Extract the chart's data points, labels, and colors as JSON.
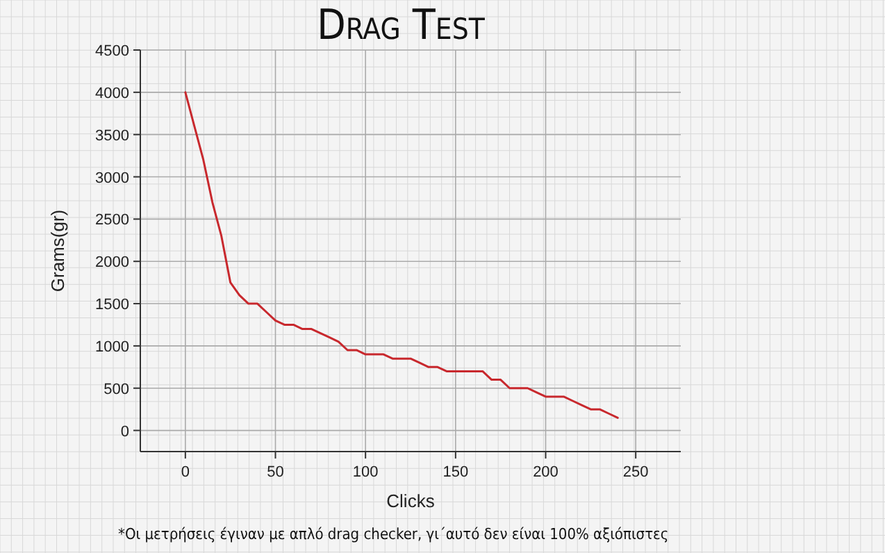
{
  "chart_data": {
    "type": "line",
    "title": "Drag Test",
    "xlabel": "Clicks",
    "ylabel": "Grams(gr)",
    "annotations": [
      "*Οι μετρήσεις έγιναν με απλό drag checker, γι΄αυτό δεν είναι 100% αξιόπιστες"
    ],
    "x": [
      0,
      5,
      10,
      15,
      20,
      25,
      30,
      35,
      40,
      45,
      50,
      55,
      60,
      65,
      70,
      75,
      80,
      85,
      90,
      95,
      100,
      105,
      110,
      115,
      120,
      125,
      130,
      135,
      140,
      145,
      150,
      155,
      160,
      165,
      170,
      175,
      180,
      185,
      190,
      195,
      200,
      205,
      210,
      215,
      220,
      225,
      230,
      235,
      240
    ],
    "series": [
      {
        "color": "#c8282d",
        "values": [
          4000,
          3600,
          3200,
          2700,
          2300,
          1750,
          1600,
          1500,
          1500,
          1400,
          1300,
          1250,
          1250,
          1200,
          1200,
          1150,
          1100,
          1050,
          950,
          950,
          900,
          900,
          900,
          850,
          850,
          850,
          800,
          750,
          750,
          700,
          700,
          700,
          700,
          700,
          600,
          600,
          500,
          500,
          500,
          450,
          400,
          400,
          400,
          350,
          300,
          250,
          250,
          200,
          150
        ]
      }
    ],
    "xlim": [
      -25,
      275
    ],
    "xticks": [
      0,
      50,
      100,
      150,
      200,
      250
    ],
    "ylim": [
      -250,
      4500
    ],
    "yticks": [
      0,
      500,
      1000,
      1500,
      2000,
      2500,
      3000,
      3500,
      4000,
      4500
    ],
    "grid": true,
    "marker": "none",
    "line_style": "solid"
  }
}
